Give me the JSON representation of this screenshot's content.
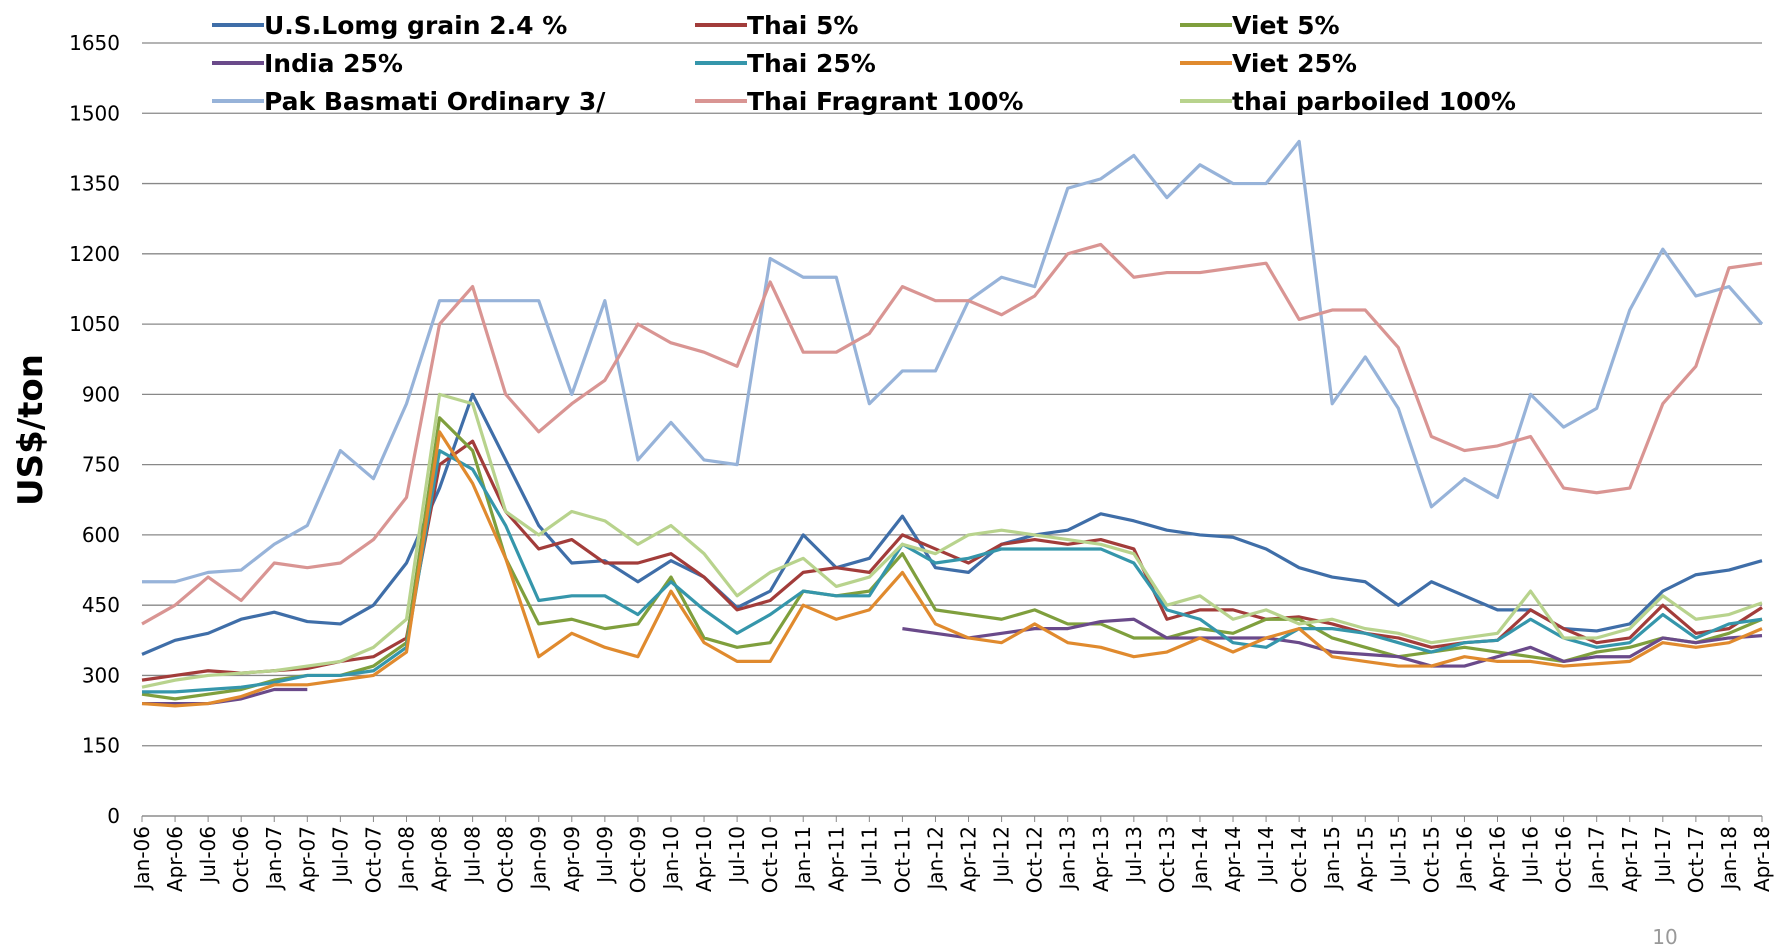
{
  "chart_data": {
    "type": "line",
    "y_label": "US$/ton",
    "page_number": "10",
    "categories": [
      "Jan-06",
      "Apr-06",
      "Jul-06",
      "Oct-06",
      "Jan-07",
      "Apr-07",
      "Jul-07",
      "Oct-07",
      "Jan-08",
      "Apr-08",
      "Jul-08",
      "Oct-08",
      "Jan-09",
      "Apr-09",
      "Jul-09",
      "Oct-09",
      "Jan-10",
      "Apr-10",
      "Jul-10",
      "Oct-10",
      "Jan-11",
      "Apr-11",
      "Jul-11",
      "Oct-11",
      "Jan-12",
      "Apr-12",
      "Jul-12",
      "Oct-12",
      "Jan-13",
      "Apr-13",
      "Jul-13",
      "Oct-13",
      "Jan-14",
      "Apr-14",
      "Jul-14",
      "Oct-14",
      "Jan-15",
      "Apr-15",
      "Jul-15",
      "Oct-15",
      "Jan-16",
      "Apr-16",
      "Jul-16",
      "Oct-16",
      "Jan-17",
      "Apr-17",
      "Jul-17",
      "Oct-17",
      "Jan-18",
      "Apr-18"
    ],
    "ylim": [
      0,
      1650
    ],
    "yticks": [
      0,
      150,
      300,
      450,
      600,
      750,
      900,
      1050,
      1200,
      1350,
      1500,
      1650
    ],
    "grid": true,
    "series": [
      {
        "name": "U.S.Lomg grain 2.4 %",
        "color": "#3f6ea8",
        "values": [
          345,
          375,
          390,
          420,
          435,
          415,
          410,
          450,
          540,
          700,
          900,
          760,
          620,
          540,
          545,
          500,
          545,
          510,
          445,
          480,
          600,
          530,
          550,
          640,
          530,
          520,
          580,
          600,
          610,
          645,
          630,
          610,
          600,
          595,
          570,
          530,
          510,
          500,
          450,
          500,
          470,
          440,
          440,
          400,
          395,
          410,
          480,
          515,
          525,
          545
        ]
      },
      {
        "name": "Thai 5%",
        "color": "#a23c3a",
        "values": [
          290,
          300,
          310,
          305,
          310,
          315,
          330,
          340,
          380,
          750,
          800,
          650,
          570,
          590,
          540,
          540,
          560,
          510,
          440,
          460,
          520,
          530,
          520,
          600,
          570,
          540,
          580,
          590,
          580,
          590,
          570,
          420,
          440,
          440,
          420,
          425,
          410,
          390,
          380,
          360,
          370,
          375,
          440,
          400,
          370,
          380,
          450,
          390,
          400,
          445
        ]
      },
      {
        "name": "Viet 5%",
        "color": "#7f9f3d",
        "values": [
          260,
          250,
          260,
          270,
          290,
          300,
          300,
          320,
          370,
          850,
          780,
          550,
          410,
          420,
          400,
          410,
          510,
          380,
          360,
          370,
          480,
          470,
          480,
          560,
          440,
          430,
          420,
          440,
          410,
          410,
          380,
          380,
          400,
          390,
          420,
          420,
          380,
          360,
          340,
          350,
          360,
          350,
          340,
          330,
          350,
          360,
          380,
          370,
          390,
          420
        ]
      },
      {
        "name": "India 25%",
        "color": "#6a4a8a",
        "values": [
          240,
          240,
          240,
          250,
          270,
          270,
          null,
          null,
          null,
          null,
          null,
          null,
          null,
          null,
          null,
          null,
          null,
          null,
          null,
          null,
          null,
          null,
          null,
          400,
          390,
          380,
          390,
          400,
          400,
          415,
          420,
          380,
          380,
          380,
          380,
          370,
          350,
          345,
          340,
          320,
          320,
          340,
          360,
          330,
          340,
          340,
          380,
          370,
          380,
          385
        ]
      },
      {
        "name": "Thai 25%",
        "color": "#3596ab",
        "values": [
          265,
          265,
          270,
          275,
          285,
          300,
          300,
          310,
          360,
          780,
          740,
          620,
          460,
          470,
          470,
          430,
          500,
          440,
          390,
          430,
          480,
          470,
          470,
          580,
          540,
          550,
          570,
          570,
          570,
          570,
          540,
          440,
          420,
          370,
          360,
          400,
          400,
          390,
          370,
          350,
          370,
          375,
          420,
          380,
          360,
          370,
          430,
          380,
          410,
          420
        ]
      },
      {
        "name": "Viet 25%",
        "color": "#e08a2e",
        "values": [
          240,
          235,
          240,
          255,
          280,
          280,
          290,
          300,
          350,
          820,
          710,
          550,
          340,
          390,
          360,
          340,
          480,
          370,
          330,
          330,
          450,
          420,
          440,
          520,
          410,
          380,
          370,
          410,
          370,
          360,
          340,
          350,
          380,
          350,
          380,
          400,
          340,
          330,
          320,
          320,
          340,
          330,
          330,
          320,
          325,
          330,
          370,
          360,
          370,
          400
        ]
      },
      {
        "name": "Pak Basmati Ordinary 3/",
        "color": "#97b3d9",
        "values": [
          500,
          500,
          520,
          525,
          580,
          620,
          780,
          720,
          880,
          1100,
          1100,
          1100,
          1100,
          900,
          1100,
          760,
          840,
          760,
          750,
          1190,
          1150,
          1150,
          880,
          950,
          950,
          1100,
          1150,
          1130,
          1340,
          1360,
          1410,
          1320,
          1390,
          1350,
          1350,
          1440,
          880,
          980,
          870,
          660,
          720,
          680,
          900,
          830,
          870,
          1080,
          1210,
          1110,
          1130,
          1050
        ]
      },
      {
        "name": "Thai Fragrant 100%",
        "color": "#d99593",
        "values": [
          410,
          450,
          510,
          460,
          540,
          530,
          540,
          590,
          680,
          1050,
          1130,
          900,
          820,
          880,
          930,
          1050,
          1010,
          990,
          960,
          1140,
          990,
          990,
          1030,
          1130,
          1100,
          1100,
          1070,
          1110,
          1200,
          1220,
          1150,
          1160,
          1160,
          1170,
          1180,
          1060,
          1080,
          1080,
          1000,
          810,
          780,
          790,
          810,
          700,
          690,
          700,
          880,
          960,
          1170,
          1180
        ]
      },
      {
        "name": "thai parboiled 100%",
        "color": "#b8d38d",
        "values": [
          275,
          290,
          300,
          305,
          310,
          320,
          330,
          360,
          420,
          900,
          880,
          650,
          600,
          650,
          630,
          580,
          620,
          560,
          470,
          520,
          550,
          490,
          510,
          580,
          560,
          600,
          610,
          600,
          590,
          580,
          560,
          450,
          470,
          420,
          440,
          410,
          420,
          400,
          390,
          370,
          380,
          390,
          480,
          380,
          380,
          400,
          470,
          420,
          430,
          455
        ]
      }
    ]
  }
}
